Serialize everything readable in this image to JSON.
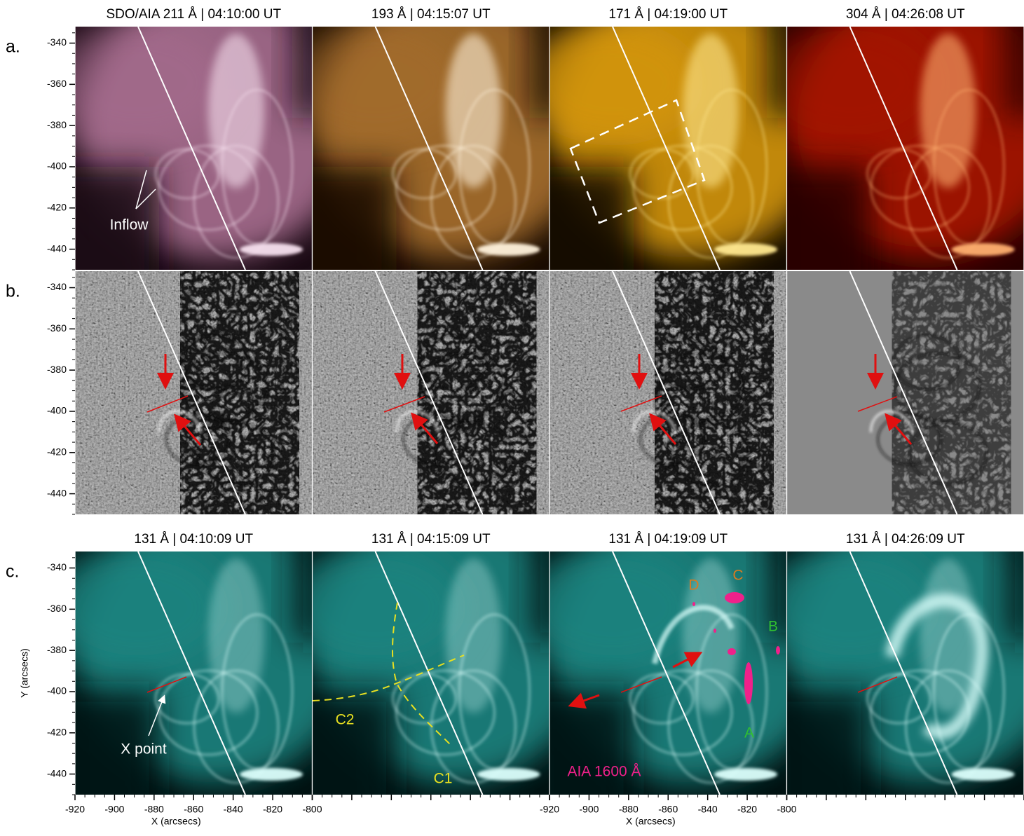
{
  "panel_titles": {
    "a": [
      "SDO/AIA  211 Å | 04:10:00 UT",
      "193 Å | 04:15:07 UT",
      "171 Å | 04:19:00 UT",
      "304 Å | 04:26:08 UT"
    ],
    "c": [
      "131 Å | 04:10:09 UT",
      "131 Å | 04:15:09 UT",
      "131 Å | 04:19:09 UT",
      "131 Å | 04:26:09 UT"
    ]
  },
  "row_labels": [
    "a.",
    "b.",
    "c."
  ],
  "x_axis": {
    "label": "X (arcsecs)",
    "lim": [
      -920,
      -800
    ],
    "ticks": [
      -920,
      -900,
      -880,
      -860,
      -840,
      -820,
      -800
    ]
  },
  "y_axis": {
    "label": "Y (arcsecs)",
    "lim": [
      -332,
      -450
    ],
    "ticks": [
      -340,
      -360,
      -380,
      -400,
      -420,
      -440
    ]
  },
  "annotations": {
    "inflow": "Inflow",
    "x_point": "X point",
    "c1": "C1",
    "c2": "C2",
    "a": "A",
    "b": "B",
    "c": "C",
    "d": "D",
    "aia1600": "AIA 1600 Å"
  }
}
